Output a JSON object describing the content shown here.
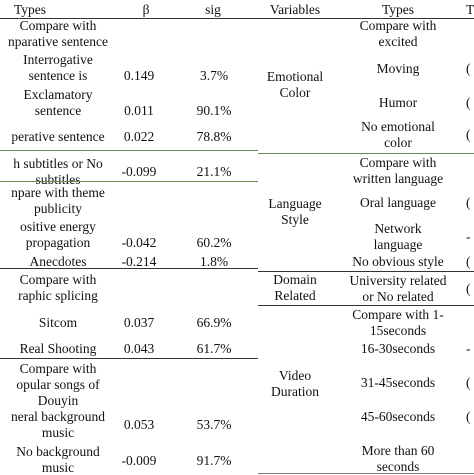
{
  "headers": {
    "types_left": "Types",
    "beta": "β",
    "sig": "sig",
    "variables": "Variables",
    "types_right": "Types",
    "edge_right": "T"
  },
  "left_rows": [
    {
      "lines": [
        "Compare with",
        "nparative sentence"
      ],
      "beta": "",
      "sig": ""
    },
    {
      "lines": [
        "Interrogative",
        "sentence is"
      ],
      "beta": "0.149",
      "sig": "3.7%"
    },
    {
      "lines": [
        "Exclamatory",
        "sentence"
      ],
      "beta": "0.011",
      "sig": "90.1%"
    },
    {
      "lines": [
        "perative sentence"
      ],
      "beta": "0.022",
      "sig": "78.8%"
    },
    {
      "lines": [
        "h subtitles or No",
        "subtitles"
      ],
      "beta": "-0.099",
      "sig": "21.1%"
    },
    {
      "lines": [
        "npare with theme",
        "publicity"
      ],
      "beta": "",
      "sig": ""
    },
    {
      "lines": [
        "ositive energy",
        "propagation"
      ],
      "beta": "-0.042",
      "sig": "60.2%"
    },
    {
      "lines": [
        "Anecdotes"
      ],
      "beta": "-0.214",
      "sig": "1.8%"
    },
    {
      "lines": [
        "Compare with",
        "raphic splicing"
      ],
      "beta": "",
      "sig": ""
    },
    {
      "lines": [
        "Sitcom"
      ],
      "beta": "0.037",
      "sig": "66.9%"
    },
    {
      "lines": [
        "Real Shooting"
      ],
      "beta": "0.043",
      "sig": "61.7%"
    },
    {
      "lines": [
        "Compare with",
        "opular songs of",
        "Douyin"
      ],
      "beta": "",
      "sig": ""
    },
    {
      "lines": [
        "neral background",
        "music"
      ],
      "beta": "0.053",
      "sig": "53.7%"
    },
    {
      "lines": [
        "No background",
        "music"
      ],
      "beta": "-0.009",
      "sig": "91.7%"
    }
  ],
  "variables": [
    {
      "lines": [
        "Emotional",
        "Color"
      ]
    },
    {
      "lines": [
        "Language",
        "Style"
      ]
    },
    {
      "lines": [
        "Domain",
        "Related"
      ]
    },
    {
      "lines": [
        "Video",
        "Duration"
      ]
    }
  ],
  "right_types": [
    {
      "lines": [
        "Compare with",
        "excited"
      ]
    },
    {
      "lines": [
        "Moving"
      ]
    },
    {
      "lines": [
        "Humor"
      ]
    },
    {
      "lines": [
        "No emotional",
        "color"
      ]
    },
    {
      "lines": [
        "Compare with",
        "written language"
      ]
    },
    {
      "lines": [
        "Oral language"
      ]
    },
    {
      "lines": [
        "Network",
        "language"
      ]
    },
    {
      "lines": [
        "No obvious style"
      ]
    },
    {
      "lines": [
        "University related",
        "or No related"
      ]
    },
    {
      "lines": [
        "Compare with 1-",
        "15seconds"
      ]
    },
    {
      "lines": [
        "16-30seconds"
      ]
    },
    {
      "lines": [
        "31-45seconds"
      ]
    },
    {
      "lines": [
        "45-60seconds"
      ]
    },
    {
      "lines": [
        "More than 60",
        "seconds"
      ]
    }
  ],
  "right_edge": [
    {
      "text": "("
    },
    {
      "text": "("
    },
    {
      "text": "("
    },
    {
      "text": "("
    },
    {
      "text": "-"
    },
    {
      "text": "("
    },
    {
      "text": "("
    },
    {
      "text": "-"
    },
    {
      "text": "("
    },
    {
      "text": "("
    }
  ]
}
